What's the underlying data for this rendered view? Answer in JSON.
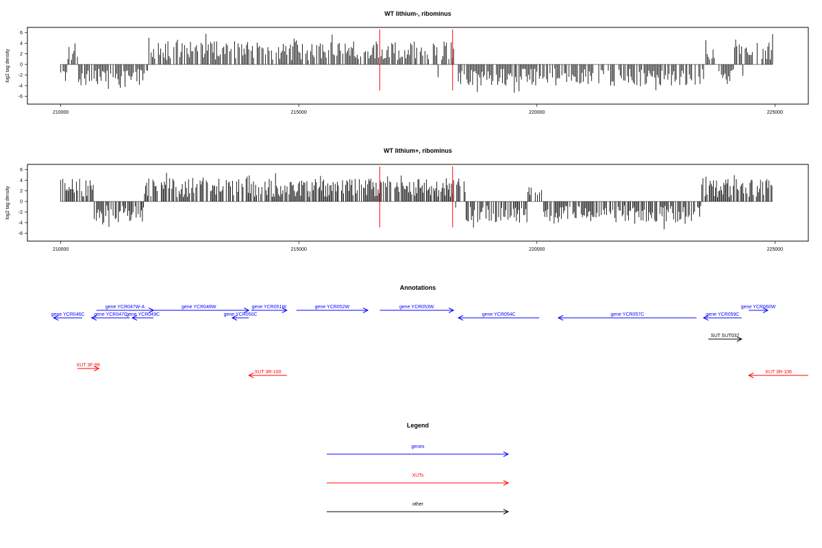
{
  "chart_data": [
    {
      "type": "bar",
      "title": "WT lithium-, ribominus",
      "ylabel": "log2 tag density",
      "xlim": [
        209300,
        225700
      ],
      "ylim": [
        -7.5,
        7
      ],
      "x_ticks": [
        210000,
        215000,
        220000,
        225000
      ],
      "y_ticks": [
        6,
        4,
        2,
        0,
        -2,
        -4,
        -6
      ],
      "markers": [
        216700,
        218230
      ],
      "marker_color": "#ff0000",
      "data_range": [
        210000,
        224950
      ],
      "positive_segments": [
        [
          210150,
          210350
        ],
        [
          211850,
          217900
        ],
        [
          218000,
          218250
        ],
        [
          223550,
          223750
        ],
        [
          224150,
          224300
        ],
        [
          224350,
          224950
        ]
      ],
      "bar_step": 25
    },
    {
      "type": "bar",
      "title": "WT lithium+, ribominus",
      "ylabel": "log2 tag density",
      "xlim": [
        209300,
        225700
      ],
      "ylim": [
        -7.5,
        7
      ],
      "x_ticks": [
        210000,
        215000,
        220000,
        225000
      ],
      "y_ticks": [
        6,
        4,
        2,
        0,
        -2,
        -4,
        -6
      ],
      "markers": [
        216700,
        218230
      ],
      "marker_color": "#ff0000",
      "data_range": [
        210000,
        224950
      ],
      "positive_segments": [
        [
          210000,
          210700
        ],
        [
          211750,
          218250
        ],
        [
          218300,
          218500
        ],
        [
          219800,
          220100
        ],
        [
          223450,
          224950
        ]
      ],
      "bar_step": 22
    }
  ],
  "annotations": {
    "title": "Annotations",
    "xlim": [
      209300,
      225700
    ],
    "items": [
      {
        "label": "gene YCR046C",
        "start": 210450,
        "end": 209850,
        "row": 2,
        "kind": "gene"
      },
      {
        "label": "gene YCR047W-A",
        "start": 210750,
        "end": 211950,
        "row": 1,
        "kind": "gene"
      },
      {
        "label": "gene YCR047C",
        "start": 211450,
        "end": 210650,
        "row": 2,
        "kind": "gene"
      },
      {
        "label": "gene YCR048W",
        "start": 211850,
        "end": 213950,
        "row": 1,
        "kind": "gene"
      },
      {
        "label": "gene YCR049C",
        "start": 211950,
        "end": 211500,
        "row": 2,
        "kind": "gene"
      },
      {
        "label": "gene YCR050C",
        "start": 213950,
        "end": 213600,
        "row": 2,
        "kind": "gene"
      },
      {
        "label": "gene YCR051W",
        "start": 214000,
        "end": 214750,
        "row": 1,
        "kind": "gene"
      },
      {
        "label": "gene YCR052W",
        "start": 214950,
        "end": 216450,
        "row": 1,
        "kind": "gene"
      },
      {
        "label": "gene YCR053W",
        "start": 216700,
        "end": 218250,
        "row": 1,
        "kind": "gene"
      },
      {
        "label": "gene YCR054C",
        "start": 220050,
        "end": 218350,
        "row": 2,
        "kind": "gene"
      },
      {
        "label": "gene YCR057C",
        "start": 223350,
        "end": 220450,
        "row": 2,
        "kind": "gene"
      },
      {
        "label": "gene YCR059C",
        "start": 224300,
        "end": 223500,
        "row": 2,
        "kind": "gene"
      },
      {
        "label": "gene YCR060W",
        "start": 224450,
        "end": 224850,
        "row": 1,
        "kind": "gene"
      },
      {
        "label": "SUT SUT037",
        "start": 223600,
        "end": 224300,
        "row": 3,
        "kind": "other"
      },
      {
        "label": "XUT 3F-99",
        "start": 210350,
        "end": 210800,
        "row": 4,
        "kind": "xut"
      },
      {
        "label": "XUT 3R-100",
        "start": 214750,
        "end": 213950,
        "row": 5,
        "kind": "xut"
      },
      {
        "label": "XUT 3R-106",
        "start": 225700,
        "end": 224450,
        "row": 5,
        "kind": "xut"
      }
    ]
  },
  "legend": {
    "title": "Legend",
    "entries": [
      {
        "label": "genes",
        "color": "#0000ff"
      },
      {
        "label": "XUTs",
        "color": "#ff0000"
      },
      {
        "label": "other",
        "color": "#000000"
      }
    ]
  }
}
